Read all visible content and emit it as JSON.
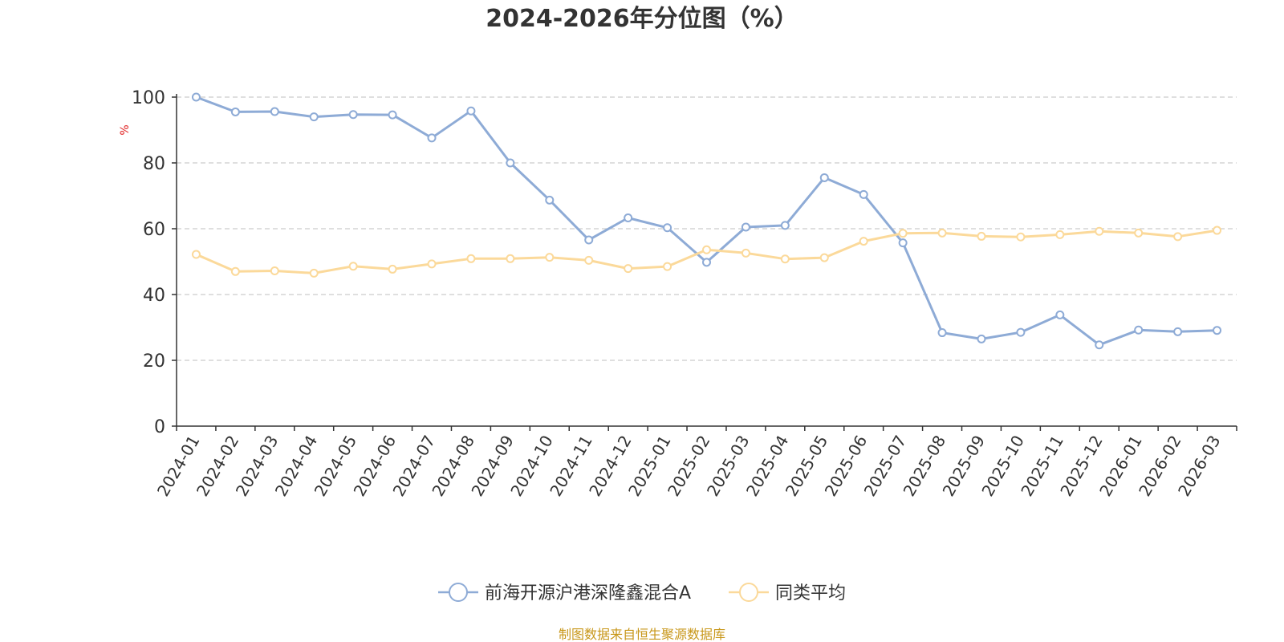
{
  "chart_data": {
    "type": "line",
    "title": "2024-2026年分位图（%）",
    "ylabel": "%",
    "xlabel": "",
    "ylim": [
      0,
      100
    ],
    "yticks": [
      0,
      20,
      40,
      60,
      80,
      100
    ],
    "grid": true,
    "legend_position": "bottom-center",
    "categories": [
      "2024-01",
      "2024-02",
      "2024-03",
      "2024-04",
      "2024-05",
      "2024-06",
      "2024-07",
      "2024-08",
      "2024-09",
      "2024-10",
      "2024-11",
      "2024-12",
      "2025-01",
      "2025-02",
      "2025-03",
      "2025-04",
      "2025-05",
      "2025-06",
      "2025-07",
      "2025-08",
      "2025-09",
      "2025-10",
      "2025-11",
      "2025-12",
      "2026-01",
      "2026-02",
      "2026-03"
    ],
    "series": [
      {
        "name": "前海开源沪港深隆鑫混合A",
        "color": "#8eabd6",
        "values": [
          100,
          95.5,
          95.6,
          94,
          94.7,
          94.6,
          87.6,
          95.8,
          80,
          68.7,
          56.6,
          63.3,
          60.3,
          49.8,
          60.5,
          61,
          75.5,
          70.4,
          55.7,
          28.4,
          26.5,
          28.5,
          33.8,
          24.7,
          29.2,
          28.7,
          29.1
        ]
      },
      {
        "name": "同类平均",
        "color": "#fbd99a",
        "values": [
          52.2,
          47,
          47.2,
          46.5,
          48.6,
          47.7,
          49.3,
          50.9,
          50.9,
          51.3,
          50.4,
          47.9,
          48.5,
          53.6,
          52.6,
          50.8,
          51.2,
          56.2,
          58.6,
          58.7,
          57.7,
          57.5,
          58.2,
          59.2,
          58.7,
          57.6,
          59.5
        ]
      }
    ],
    "source_text": "制图数据来自恒生聚源数据库",
    "source_color": "#c8971a",
    "unit_color": "#e02020",
    "axis_color": "#333333",
    "grid_color": "#cccccc"
  }
}
